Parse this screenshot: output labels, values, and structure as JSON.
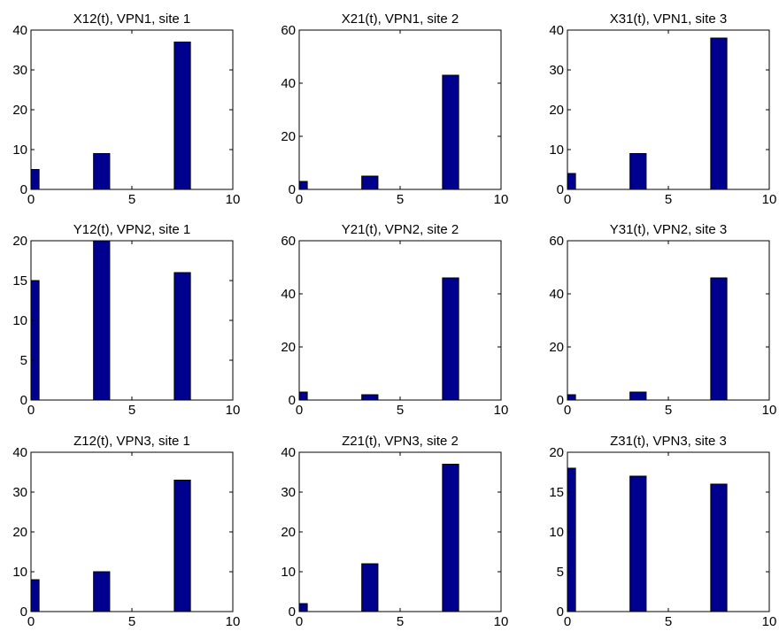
{
  "chart_data": [
    {
      "type": "bar",
      "title": "X12(t), VPN1, site 1",
      "x": [
        0,
        3.5,
        7.5
      ],
      "values": [
        5,
        9,
        37
      ],
      "ylim": [
        0,
        40
      ],
      "yticks": [
        0,
        10,
        20,
        30,
        40
      ],
      "xlim": [
        0,
        10
      ],
      "xticks": [
        0,
        5,
        10
      ],
      "bar_color": "#00008f"
    },
    {
      "type": "bar",
      "title": "X21(t), VPN1, site 2",
      "x": [
        0,
        3.5,
        7.5
      ],
      "values": [
        3,
        5,
        43
      ],
      "ylim": [
        0,
        60
      ],
      "yticks": [
        0,
        20,
        40,
        60
      ],
      "xlim": [
        0,
        10
      ],
      "xticks": [
        0,
        5,
        10
      ],
      "bar_color": "#00008f"
    },
    {
      "type": "bar",
      "title": "X31(t), VPN1, site 3",
      "x": [
        0,
        3.5,
        7.5
      ],
      "values": [
        4,
        9,
        38
      ],
      "ylim": [
        0,
        40
      ],
      "yticks": [
        0,
        10,
        20,
        30,
        40
      ],
      "xlim": [
        0,
        10
      ],
      "xticks": [
        0,
        5,
        10
      ],
      "bar_color": "#00008f"
    },
    {
      "type": "bar",
      "title": "Y12(t), VPN2, site 1",
      "x": [
        0,
        3.5,
        7.5
      ],
      "values": [
        15,
        20,
        16
      ],
      "ylim": [
        0,
        20
      ],
      "yticks": [
        0,
        5,
        10,
        15,
        20
      ],
      "xlim": [
        0,
        10
      ],
      "xticks": [
        0,
        5,
        10
      ],
      "bar_color": "#00008f"
    },
    {
      "type": "bar",
      "title": "Y21(t), VPN2, site 2",
      "x": [
        0,
        3.5,
        7.5
      ],
      "values": [
        3,
        2,
        46
      ],
      "ylim": [
        0,
        60
      ],
      "yticks": [
        0,
        20,
        40,
        60
      ],
      "xlim": [
        0,
        10
      ],
      "xticks": [
        0,
        5,
        10
      ],
      "bar_color": "#00008f"
    },
    {
      "type": "bar",
      "title": "Y31(t), VPN2, site 3",
      "x": [
        0,
        3.5,
        7.5
      ],
      "values": [
        2,
        3,
        46
      ],
      "ylim": [
        0,
        60
      ],
      "yticks": [
        0,
        20,
        40,
        60
      ],
      "xlim": [
        0,
        10
      ],
      "xticks": [
        0,
        5,
        10
      ],
      "bar_color": "#00008f"
    },
    {
      "type": "bar",
      "title": "Z12(t), VPN3, site 1",
      "x": [
        0,
        3.5,
        7.5
      ],
      "values": [
        8,
        10,
        33
      ],
      "ylim": [
        0,
        40
      ],
      "yticks": [
        0,
        10,
        20,
        30,
        40
      ],
      "xlim": [
        0,
        10
      ],
      "xticks": [
        0,
        5,
        10
      ],
      "bar_color": "#00008f"
    },
    {
      "type": "bar",
      "title": "Z21(t), VPN3, site 2",
      "x": [
        0,
        3.5,
        7.5
      ],
      "values": [
        2,
        12,
        37
      ],
      "ylim": [
        0,
        40
      ],
      "yticks": [
        0,
        10,
        20,
        30,
        40
      ],
      "xlim": [
        0,
        10
      ],
      "xticks": [
        0,
        5,
        10
      ],
      "bar_color": "#00008f"
    },
    {
      "type": "bar",
      "title": "Z31(t), VPN3, site 3",
      "x": [
        0,
        3.5,
        7.5
      ],
      "values": [
        18,
        17,
        16
      ],
      "ylim": [
        0,
        20
      ],
      "yticks": [
        0,
        5,
        10,
        15,
        20
      ],
      "xlim": [
        0,
        10
      ],
      "xticks": [
        0,
        5,
        10
      ],
      "bar_color": "#00008f"
    }
  ]
}
